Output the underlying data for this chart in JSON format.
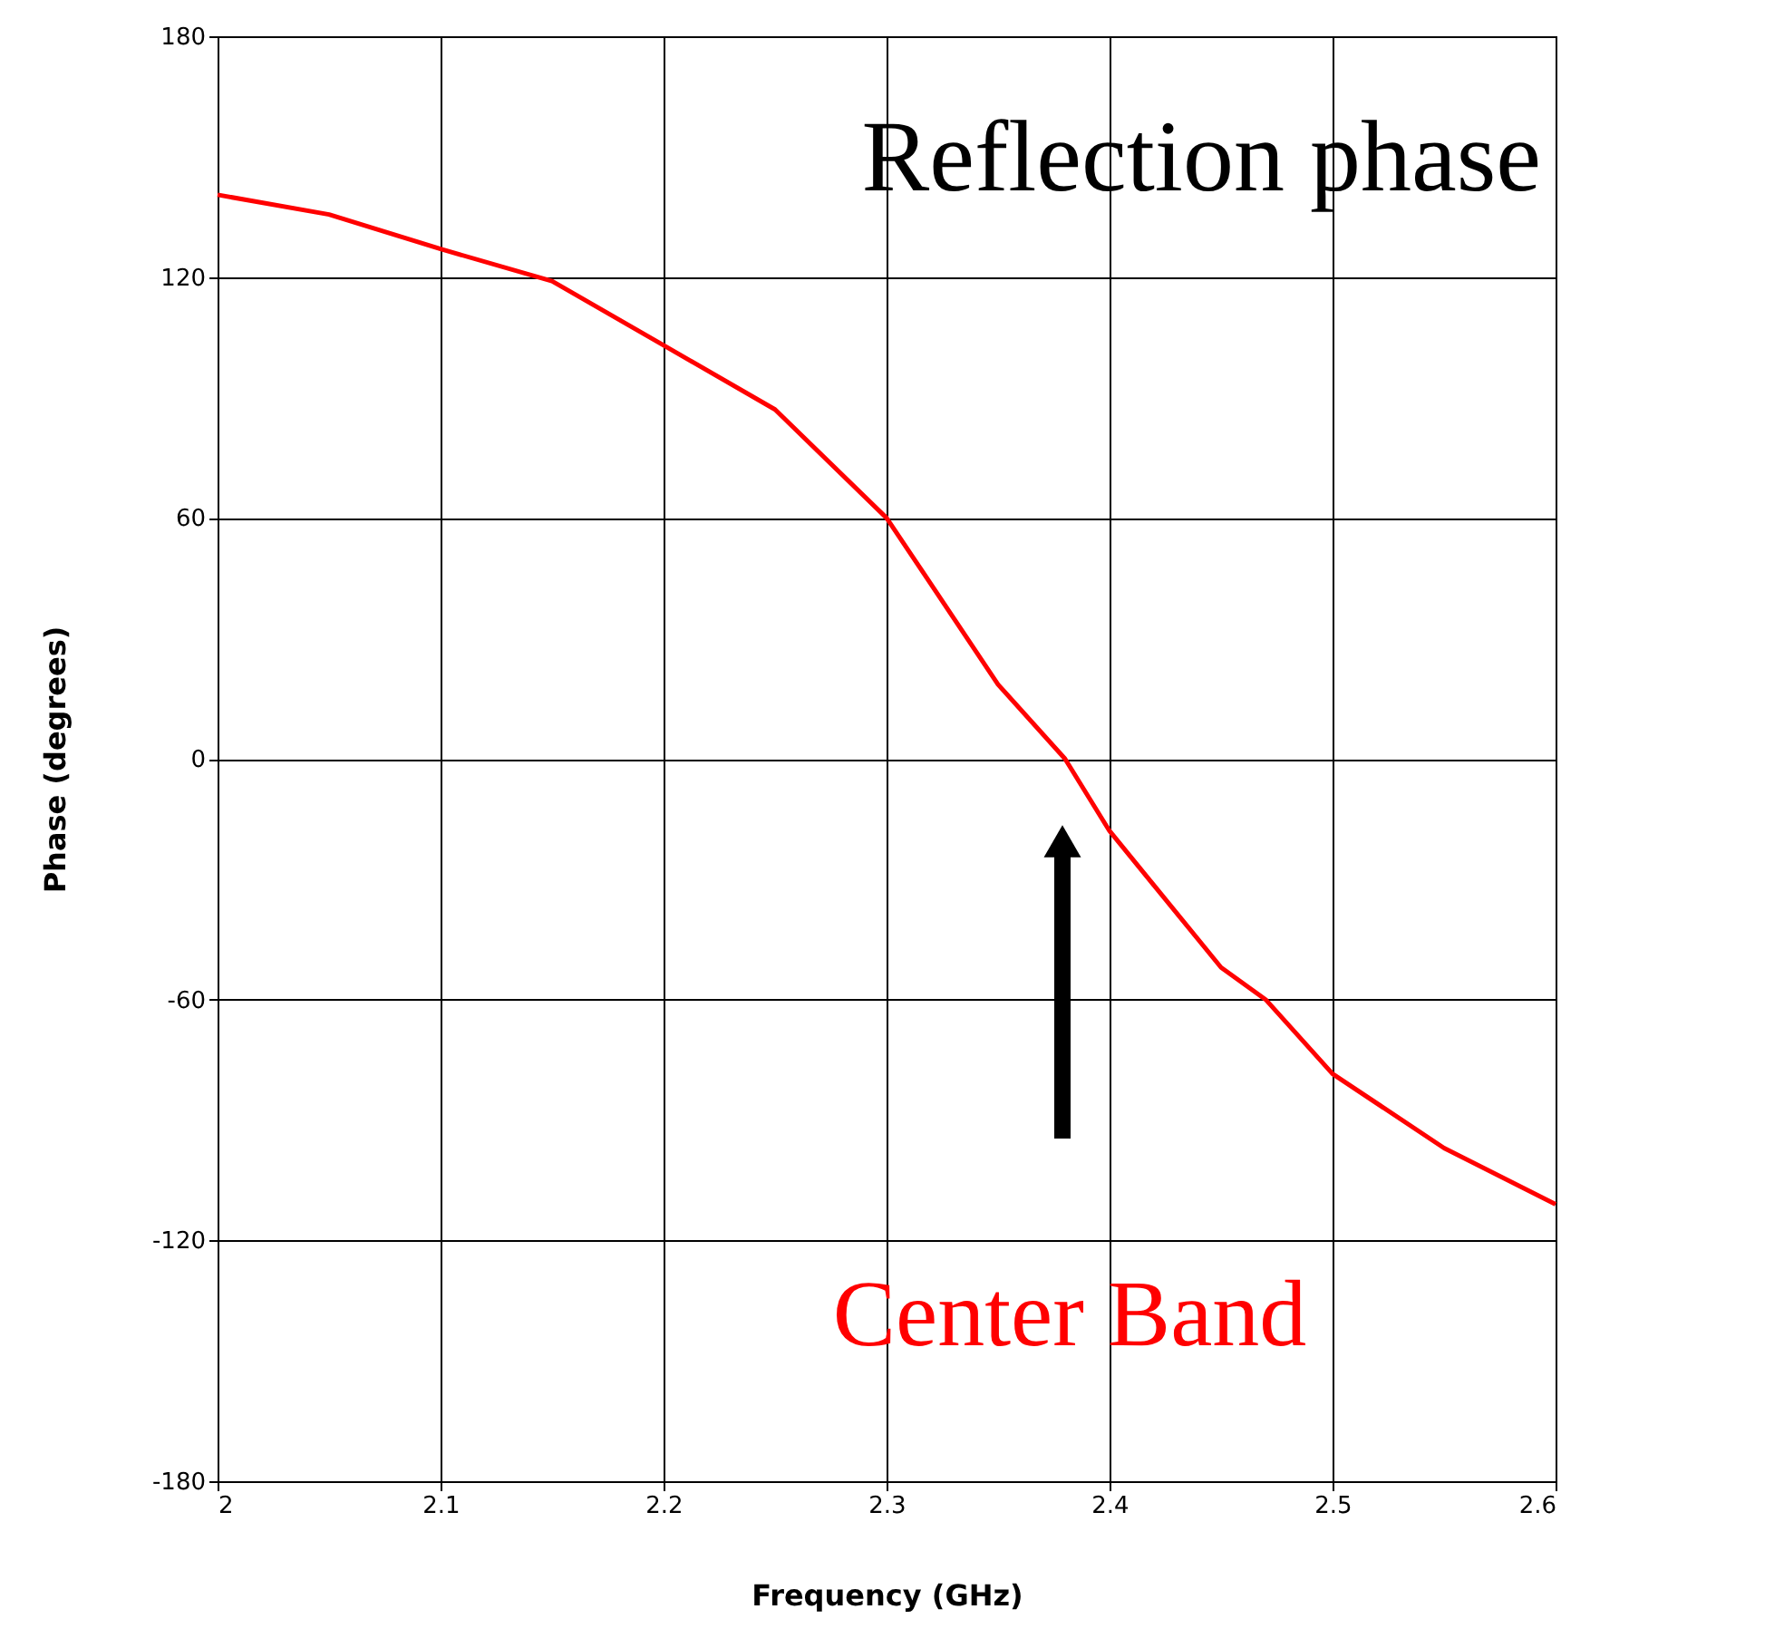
{
  "chart_data": {
    "type": "line",
    "title": "Reflection phase",
    "xlabel": "Frequency (GHz)",
    "ylabel": "Phase (degrees)",
    "annotations": [
      "Center Band"
    ],
    "x": [
      2.0,
      2.05,
      2.1,
      2.15,
      2.2,
      2.25,
      2.3,
      2.35,
      2.38,
      2.4,
      2.45,
      2.47,
      2.5,
      2.55,
      2.6
    ],
    "series": [
      {
        "color": "#ff0000",
        "values": [
          140.5,
          135.6,
          127,
          119,
          103,
          87,
          60,
          18.5,
          0,
          -18,
          -52,
          -60,
          -78.5,
          -97,
          -111
        ]
      }
    ],
    "xlim": [
      2.0,
      2.6
    ],
    "xticks": [
      2,
      2.1,
      2.2,
      2.3,
      2.4,
      2.5,
      2.6
    ],
    "ylim": [
      -180,
      180
    ],
    "yticks": [
      -180,
      -120,
      -60,
      0,
      60,
      120,
      180
    ],
    "grid": true,
    "line_style": "solid",
    "marker": "none"
  }
}
